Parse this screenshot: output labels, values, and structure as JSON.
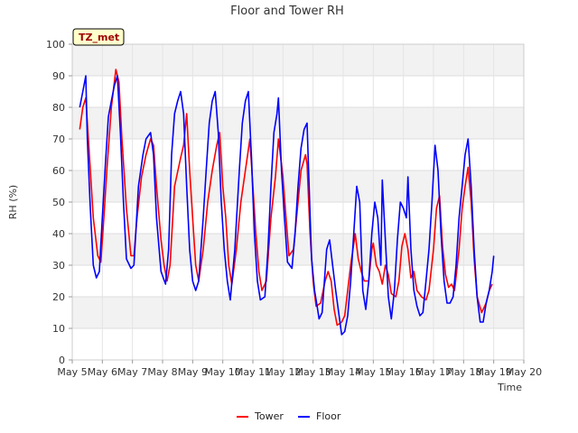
{
  "chart_data": {
    "type": "line",
    "title": "Floor and Tower RH",
    "xlabel": "Time",
    "ylabel": "RH (%)",
    "ylim": [
      0,
      100
    ],
    "xlim": [
      0,
      15
    ],
    "yticks": [
      0,
      10,
      20,
      30,
      40,
      50,
      60,
      70,
      80,
      90,
      100
    ],
    "xtick_labels": [
      "May 5",
      "May 6",
      "May 7",
      "May 8",
      "May 9",
      "May 10",
      "May 11",
      "May 12",
      "May 13",
      "May 14",
      "May 15",
      "May 16",
      "May 17",
      "May 18",
      "May 19",
      "May 20"
    ],
    "station_badge": "TZ_met",
    "grid": true,
    "legend_position": "bottom-center",
    "series": [
      {
        "name": "Tower",
        "color": "#ff0000",
        "points": [
          [
            0.25,
            73
          ],
          [
            0.35,
            80
          ],
          [
            0.45,
            83
          ],
          [
            0.55,
            68
          ],
          [
            0.7,
            45
          ],
          [
            0.85,
            33
          ],
          [
            0.95,
            31
          ],
          [
            1.05,
            45
          ],
          [
            1.15,
            60
          ],
          [
            1.3,
            80
          ],
          [
            1.45,
            92
          ],
          [
            1.55,
            88
          ],
          [
            1.65,
            70
          ],
          [
            1.8,
            48
          ],
          [
            1.95,
            33
          ],
          [
            2.05,
            33
          ],
          [
            2.15,
            45
          ],
          [
            2.3,
            58
          ],
          [
            2.45,
            65
          ],
          [
            2.6,
            70
          ],
          [
            2.7,
            68
          ],
          [
            2.8,
            55
          ],
          [
            2.95,
            38
          ],
          [
            3.05,
            30
          ],
          [
            3.15,
            25
          ],
          [
            3.25,
            30
          ],
          [
            3.4,
            55
          ],
          [
            3.6,
            64
          ],
          [
            3.7,
            68
          ],
          [
            3.8,
            78
          ],
          [
            3.9,
            60
          ],
          [
            4.0,
            45
          ],
          [
            4.1,
            30
          ],
          [
            4.2,
            25
          ],
          [
            4.35,
            35
          ],
          [
            4.5,
            50
          ],
          [
            4.65,
            60
          ],
          [
            4.8,
            68
          ],
          [
            4.9,
            72
          ],
          [
            5.0,
            55
          ],
          [
            5.1,
            45
          ],
          [
            5.2,
            30
          ],
          [
            5.3,
            24
          ],
          [
            5.45,
            35
          ],
          [
            5.6,
            50
          ],
          [
            5.75,
            60
          ],
          [
            5.9,
            70
          ],
          [
            6.0,
            55
          ],
          [
            6.1,
            40
          ],
          [
            6.2,
            28
          ],
          [
            6.3,
            22
          ],
          [
            6.45,
            25
          ],
          [
            6.6,
            45
          ],
          [
            6.75,
            58
          ],
          [
            6.85,
            70
          ],
          [
            7.0,
            58
          ],
          [
            7.1,
            45
          ],
          [
            7.2,
            33
          ],
          [
            7.35,
            35
          ],
          [
            7.5,
            50
          ],
          [
            7.6,
            60
          ],
          [
            7.75,
            65
          ],
          [
            7.8,
            62
          ],
          [
            7.9,
            40
          ],
          [
            8.0,
            25
          ],
          [
            8.1,
            17
          ],
          [
            8.25,
            18
          ],
          [
            8.4,
            25
          ],
          [
            8.5,
            28
          ],
          [
            8.6,
            25
          ],
          [
            8.7,
            16
          ],
          [
            8.8,
            11
          ],
          [
            8.95,
            12
          ],
          [
            9.05,
            14
          ],
          [
            9.15,
            22
          ],
          [
            9.25,
            30
          ],
          [
            9.4,
            40
          ],
          [
            9.5,
            32
          ],
          [
            9.6,
            28
          ],
          [
            9.7,
            25
          ],
          [
            9.85,
            25
          ],
          [
            9.95,
            35
          ],
          [
            10.0,
            37
          ],
          [
            10.1,
            30
          ],
          [
            10.2,
            28
          ],
          [
            10.3,
            24
          ],
          [
            10.4,
            30
          ],
          [
            10.5,
            27
          ],
          [
            10.6,
            21
          ],
          [
            10.75,
            20
          ],
          [
            10.85,
            25
          ],
          [
            10.95,
            36
          ],
          [
            11.05,
            40
          ],
          [
            11.15,
            35
          ],
          [
            11.25,
            26
          ],
          [
            11.35,
            28
          ],
          [
            11.45,
            22
          ],
          [
            11.6,
            20
          ],
          [
            11.75,
            19
          ],
          [
            11.85,
            22
          ],
          [
            12.0,
            35
          ],
          [
            12.1,
            48
          ],
          [
            12.2,
            52
          ],
          [
            12.3,
            36
          ],
          [
            12.4,
            27
          ],
          [
            12.5,
            23
          ],
          [
            12.6,
            24
          ],
          [
            12.7,
            22
          ],
          [
            12.85,
            35
          ],
          [
            12.95,
            48
          ],
          [
            13.05,
            55
          ],
          [
            13.15,
            61
          ],
          [
            13.25,
            50
          ],
          [
            13.35,
            32
          ],
          [
            13.45,
            20
          ],
          [
            13.6,
            15
          ],
          [
            13.75,
            18
          ],
          [
            13.85,
            22
          ],
          [
            13.95,
            24
          ]
        ]
      },
      {
        "name": "Floor",
        "color": "#0000ff",
        "points": [
          [
            0.25,
            80
          ],
          [
            0.35,
            85
          ],
          [
            0.45,
            90
          ],
          [
            0.5,
            70
          ],
          [
            0.6,
            48
          ],
          [
            0.7,
            30
          ],
          [
            0.8,
            26
          ],
          [
            0.9,
            28
          ],
          [
            1.0,
            45
          ],
          [
            1.1,
            62
          ],
          [
            1.2,
            77
          ],
          [
            1.3,
            82
          ],
          [
            1.4,
            87
          ],
          [
            1.5,
            90
          ],
          [
            1.6,
            72
          ],
          [
            1.7,
            50
          ],
          [
            1.8,
            32
          ],
          [
            1.95,
            29
          ],
          [
            2.05,
            30
          ],
          [
            2.2,
            55
          ],
          [
            2.35,
            65
          ],
          [
            2.45,
            70
          ],
          [
            2.6,
            72
          ],
          [
            2.7,
            65
          ],
          [
            2.8,
            45
          ],
          [
            2.95,
            28
          ],
          [
            3.1,
            24
          ],
          [
            3.2,
            35
          ],
          [
            3.3,
            65
          ],
          [
            3.4,
            78
          ],
          [
            3.5,
            82
          ],
          [
            3.6,
            85
          ],
          [
            3.7,
            78
          ],
          [
            3.8,
            55
          ],
          [
            3.9,
            35
          ],
          [
            4.0,
            25
          ],
          [
            4.1,
            22
          ],
          [
            4.2,
            25
          ],
          [
            4.35,
            45
          ],
          [
            4.45,
            60
          ],
          [
            4.55,
            75
          ],
          [
            4.65,
            82
          ],
          [
            4.75,
            85
          ],
          [
            4.85,
            72
          ],
          [
            4.95,
            50
          ],
          [
            5.05,
            35
          ],
          [
            5.15,
            25
          ],
          [
            5.25,
            19
          ],
          [
            5.4,
            35
          ],
          [
            5.55,
            60
          ],
          [
            5.65,
            75
          ],
          [
            5.75,
            82
          ],
          [
            5.85,
            85
          ],
          [
            5.95,
            65
          ],
          [
            6.05,
            40
          ],
          [
            6.15,
            25
          ],
          [
            6.25,
            19
          ],
          [
            6.4,
            20
          ],
          [
            6.5,
            35
          ],
          [
            6.6,
            55
          ],
          [
            6.7,
            72
          ],
          [
            6.8,
            78
          ],
          [
            6.85,
            83
          ],
          [
            6.95,
            60
          ],
          [
            7.05,
            45
          ],
          [
            7.15,
            31
          ],
          [
            7.3,
            29
          ],
          [
            7.4,
            40
          ],
          [
            7.5,
            55
          ],
          [
            7.6,
            67
          ],
          [
            7.7,
            73
          ],
          [
            7.8,
            75
          ],
          [
            7.85,
            60
          ],
          [
            7.95,
            32
          ],
          [
            8.05,
            22
          ],
          [
            8.15,
            16
          ],
          [
            8.2,
            13
          ],
          [
            8.3,
            15
          ],
          [
            8.45,
            35
          ],
          [
            8.55,
            38
          ],
          [
            8.65,
            30
          ],
          [
            8.75,
            22
          ],
          [
            8.85,
            15
          ],
          [
            8.95,
            8
          ],
          [
            9.05,
            9
          ],
          [
            9.15,
            14
          ],
          [
            9.25,
            25
          ],
          [
            9.35,
            40
          ],
          [
            9.45,
            55
          ],
          [
            9.55,
            50
          ],
          [
            9.65,
            22
          ],
          [
            9.75,
            16
          ],
          [
            9.85,
            25
          ],
          [
            9.95,
            40
          ],
          [
            10.05,
            50
          ],
          [
            10.15,
            45
          ],
          [
            10.25,
            30
          ],
          [
            10.3,
            57
          ],
          [
            10.4,
            38
          ],
          [
            10.5,
            20
          ],
          [
            10.6,
            13
          ],
          [
            10.7,
            22
          ],
          [
            10.8,
            38
          ],
          [
            10.9,
            50
          ],
          [
            11.0,
            48
          ],
          [
            11.1,
            45
          ],
          [
            11.15,
            58
          ],
          [
            11.25,
            35
          ],
          [
            11.35,
            22
          ],
          [
            11.45,
            17
          ],
          [
            11.55,
            14
          ],
          [
            11.65,
            15
          ],
          [
            11.75,
            25
          ],
          [
            11.85,
            35
          ],
          [
            11.95,
            50
          ],
          [
            12.05,
            68
          ],
          [
            12.15,
            60
          ],
          [
            12.25,
            40
          ],
          [
            12.35,
            25
          ],
          [
            12.45,
            18
          ],
          [
            12.55,
            18
          ],
          [
            12.65,
            20
          ],
          [
            12.75,
            30
          ],
          [
            12.85,
            45
          ],
          [
            12.95,
            55
          ],
          [
            13.05,
            65
          ],
          [
            13.15,
            70
          ],
          [
            13.25,
            55
          ],
          [
            13.35,
            35
          ],
          [
            13.45,
            20
          ],
          [
            13.55,
            12
          ],
          [
            13.65,
            12
          ],
          [
            13.75,
            18
          ],
          [
            13.85,
            22
          ],
          [
            13.95,
            28
          ],
          [
            14.0,
            33
          ]
        ]
      }
    ]
  }
}
